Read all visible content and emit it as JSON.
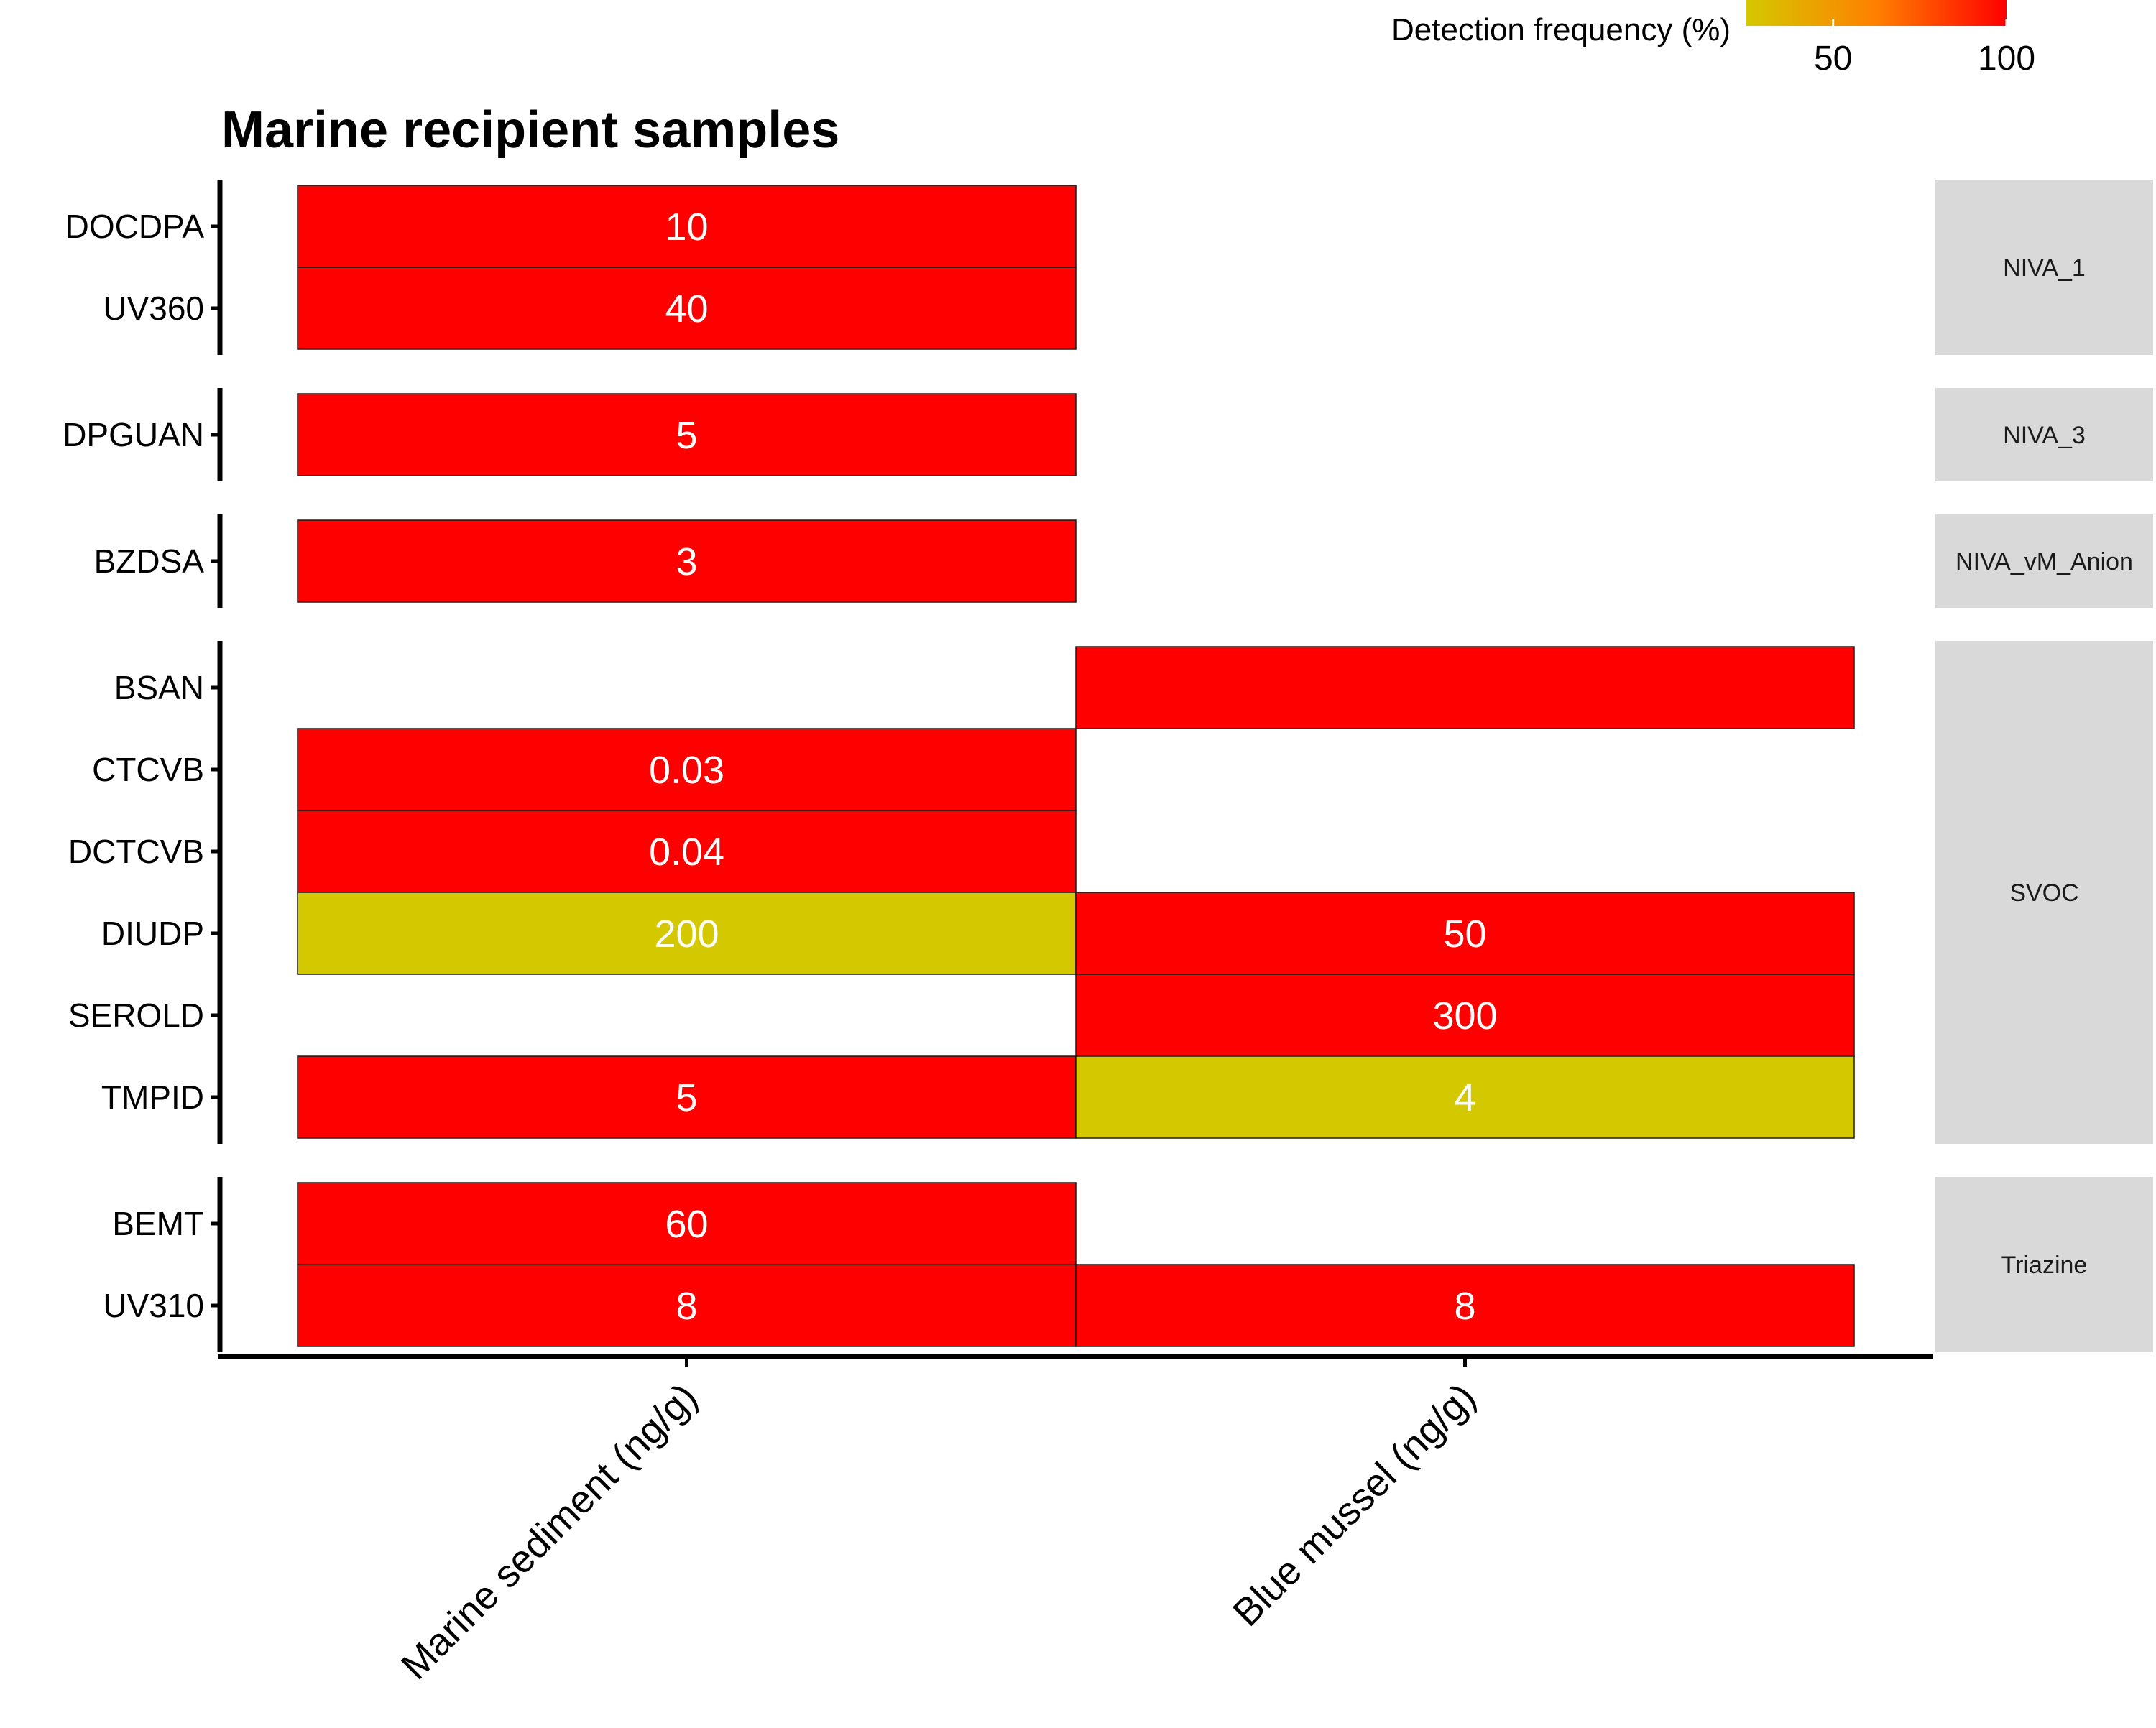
{
  "chart_data": {
    "type": "heatmap",
    "title": "Marine recipient samples",
    "columns": [
      "Marine sediment (ng/g)",
      "Blue mussel (ng/g)"
    ],
    "groups": [
      {
        "name": "NIVA_1",
        "rows": [
          "DOCDPA",
          "UV360"
        ]
      },
      {
        "name": "NIVA_3",
        "rows": [
          "DPGUAN"
        ]
      },
      {
        "name": "NIVA_vM_Anion",
        "rows": [
          "BZDSA"
        ]
      },
      {
        "name": "SVOC",
        "rows": [
          "BSAN",
          "CTCVB",
          "DCTCVB",
          "DIUDP",
          "SEROLD",
          "TMPID"
        ]
      },
      {
        "name": "Triazine",
        "rows": [
          "BEMT",
          "UV310"
        ]
      }
    ],
    "cells": [
      {
        "row": "DOCDPA",
        "col": 0,
        "label": "10",
        "frequency": 100
      },
      {
        "row": "UV360",
        "col": 0,
        "label": "40",
        "frequency": 100
      },
      {
        "row": "DPGUAN",
        "col": 0,
        "label": "5",
        "frequency": 100
      },
      {
        "row": "BZDSA",
        "col": 0,
        "label": "3",
        "frequency": 100
      },
      {
        "row": "BSAN",
        "col": 1,
        "label": "",
        "frequency": 100
      },
      {
        "row": "CTCVB",
        "col": 0,
        "label": "0.03",
        "frequency": 100
      },
      {
        "row": "DCTCVB",
        "col": 0,
        "label": "0.04",
        "frequency": 100
      },
      {
        "row": "DIUDP",
        "col": 0,
        "label": "200",
        "frequency": 25
      },
      {
        "row": "DIUDP",
        "col": 1,
        "label": "50",
        "frequency": 100
      },
      {
        "row": "SEROLD",
        "col": 1,
        "label": "300",
        "frequency": 100
      },
      {
        "row": "TMPID",
        "col": 0,
        "label": "5",
        "frequency": 100
      },
      {
        "row": "TMPID",
        "col": 1,
        "label": "4",
        "frequency": 25
      },
      {
        "row": "BEMT",
        "col": 0,
        "label": "60",
        "frequency": 100
      },
      {
        "row": "UV310",
        "col": 0,
        "label": "8",
        "frequency": 100
      },
      {
        "row": "UV310",
        "col": 1,
        "label": "8",
        "frequency": 100
      }
    ],
    "legend": {
      "title": "Detection frequency (%)",
      "range": [
        25,
        100
      ],
      "ticks": [
        50,
        100
      ],
      "colors": {
        "low": "#d4c800",
        "mid": "#ff8000",
        "high": "#ff0000"
      }
    },
    "colors": {
      "strip": "#d9d9d9",
      "cell_border": "#1a1a1a",
      "axis": "#000000",
      "label_text": "#ffffff"
    }
  }
}
